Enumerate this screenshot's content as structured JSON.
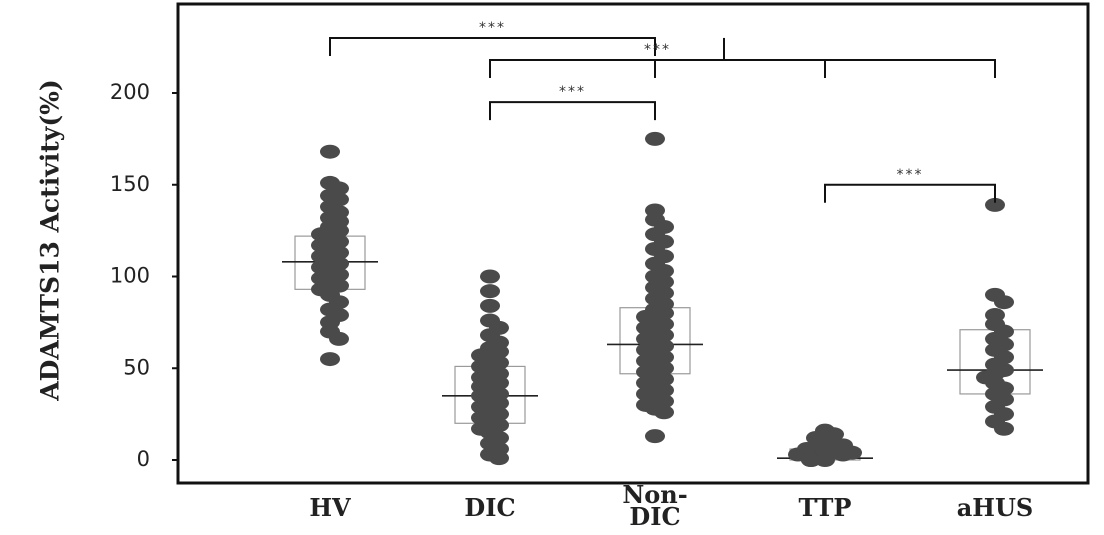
{
  "chart_data": {
    "type": "scatter",
    "ylabel": "ADAMTS13 Activity(%)",
    "xlabel": "",
    "ylim": [
      0,
      240
    ],
    "yticks": [
      0,
      50,
      100,
      150,
      200
    ],
    "grid": false,
    "categories": [
      {
        "label_lines": [
          "HV"
        ],
        "median": 108,
        "q1": 93,
        "q3": 122,
        "values": [
          168,
          151,
          148,
          144,
          142,
          138,
          135,
          132,
          130,
          127,
          125,
          123,
          121,
          119,
          117,
          115,
          113,
          111,
          109,
          107,
          105,
          103,
          101,
          99,
          97,
          95,
          93,
          90,
          86,
          82,
          79,
          75,
          70,
          66,
          55
        ]
      },
      {
        "label_lines": [
          "DIC"
        ],
        "median": 35,
        "q1": 20,
        "q3": 51,
        "values": [
          100,
          92,
          84,
          76,
          72,
          68,
          64,
          61,
          59,
          57,
          55,
          53,
          51,
          49,
          47,
          45,
          44,
          42,
          40,
          38,
          36,
          35,
          33,
          31,
          29,
          27,
          25,
          23,
          21,
          19,
          17,
          15,
          12,
          9,
          6,
          3,
          1
        ]
      },
      {
        "label_lines": [
          "Non-",
          "DIC"
        ],
        "median": 63,
        "q1": 47,
        "q3": 83,
        "values": [
          175,
          136,
          131,
          127,
          123,
          119,
          115,
          111,
          107,
          103,
          100,
          97,
          94,
          91,
          88,
          85,
          82,
          80,
          78,
          76,
          74,
          72,
          70,
          68,
          66,
          64,
          62,
          60,
          58,
          56,
          54,
          52,
          50,
          48,
          46,
          44,
          42,
          40,
          38,
          36,
          34,
          32,
          30,
          28,
          26,
          13
        ]
      },
      {
        "label_lines": [
          "TTP"
        ],
        "median": 1,
        "q1": 0,
        "q3": 6,
        "values": [
          16,
          14,
          12,
          10,
          9,
          8,
          7,
          6,
          5,
          4,
          4,
          3,
          3,
          2,
          2,
          1,
          1,
          1,
          0,
          0,
          0
        ]
      },
      {
        "label_lines": [
          "aHUS"
        ],
        "median": 49,
        "q1": 36,
        "q3": 71,
        "values": [
          139,
          90,
          86,
          79,
          74,
          70,
          66,
          63,
          60,
          56,
          52,
          49,
          47,
          45,
          42,
          39,
          36,
          33,
          29,
          25,
          21,
          17
        ]
      }
    ],
    "comparisons": [
      {
        "from": 0,
        "to": 2,
        "level": 230,
        "label": "***"
      },
      {
        "from": 1,
        "to": 3,
        "level": 218,
        "label": "***"
      },
      {
        "from": 1,
        "to": 2,
        "level": 195,
        "label": "***"
      },
      {
        "from": 3,
        "to": 4,
        "level": 150,
        "label": "***"
      }
    ],
    "extra_bracket": {
      "from": 1,
      "to": 4,
      "level": 218,
      "mid_drops": [
        2,
        3
      ]
    },
    "colors": {
      "point": "#4a4a4a",
      "box": "#9a9a9a",
      "axis": "#111111",
      "median": "#222222"
    }
  }
}
